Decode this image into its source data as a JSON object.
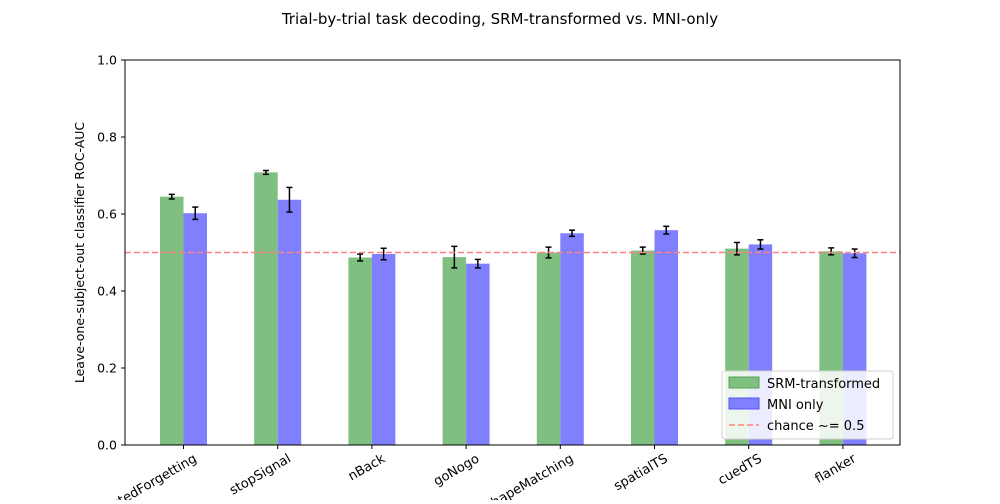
{
  "chart_data": {
    "type": "bar",
    "title": "Trial-by-trial task decoding, SRM-transformed vs. MNI-only",
    "xlabel": "",
    "ylabel": "Leave-one-subject-out classifier ROC-AUC",
    "ylim": [
      0,
      1.0
    ],
    "yticks": [
      "0.0",
      "0.2",
      "0.4",
      "0.6",
      "0.8",
      "1.0"
    ],
    "categories": [
      "directedForgetting",
      "stopSignal",
      "nBack",
      "goNogo",
      "shapeMatching",
      "spatialTS",
      "cuedTS",
      "flanker"
    ],
    "series": [
      {
        "name": "SRM-transformed",
        "color": "#7fbf7f",
        "edge": "#5aa05a",
        "values": [
          0.645,
          0.708,
          0.487,
          0.488,
          0.5,
          0.505,
          0.51,
          0.503
        ],
        "errors": [
          0.006,
          0.005,
          0.009,
          0.028,
          0.014,
          0.009,
          0.016,
          0.009
        ]
      },
      {
        "name": "MNI only",
        "color": "#8080ff",
        "edge": "#5555ee",
        "values": [
          0.602,
          0.637,
          0.496,
          0.471,
          0.55,
          0.558,
          0.521,
          0.498
        ],
        "errors": [
          0.016,
          0.032,
          0.015,
          0.011,
          0.008,
          0.01,
          0.012,
          0.011
        ]
      }
    ],
    "reference_line": {
      "value": 0.5,
      "label": "chance ~= 0.5",
      "color": "#ff8080",
      "style": "dashed"
    },
    "legend": {
      "placement": "lower-right"
    },
    "grid": false,
    "tick_label_rotation": 30
  }
}
